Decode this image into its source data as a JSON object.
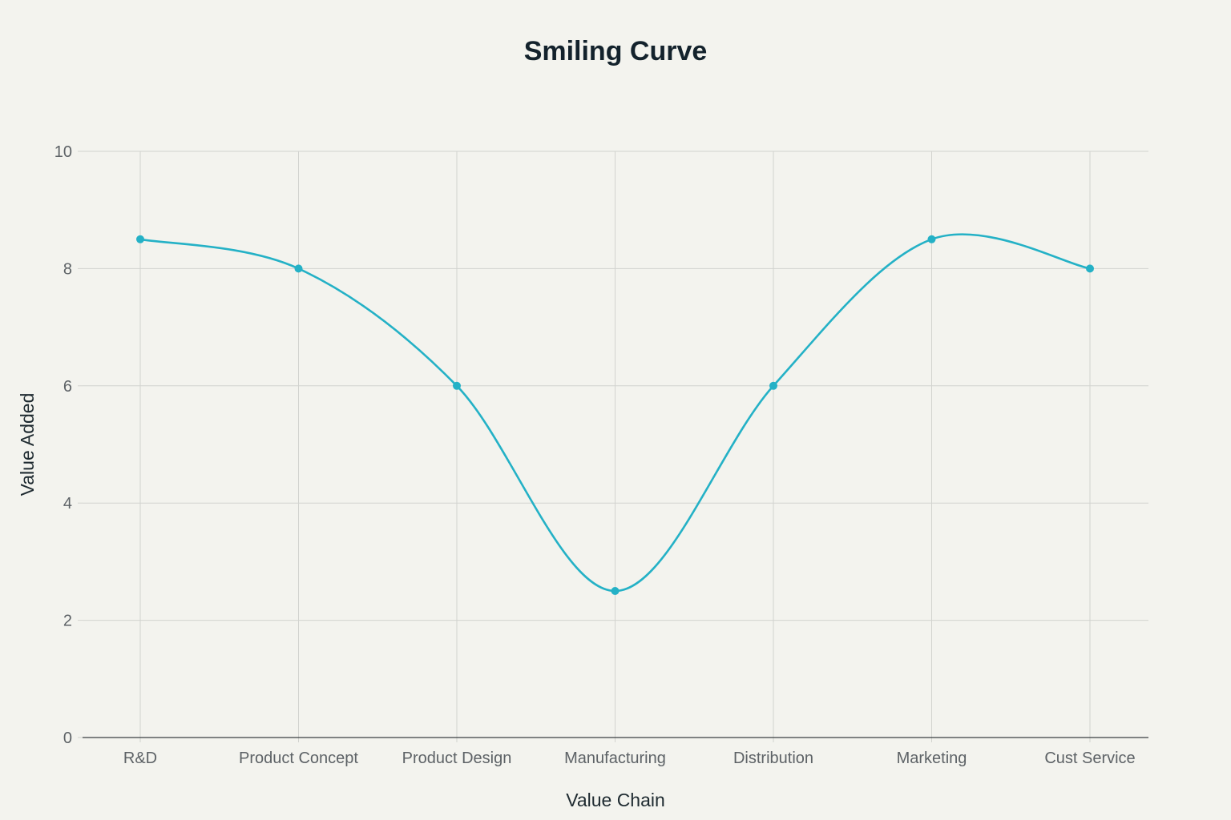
{
  "chart_data": {
    "type": "line",
    "title": "Smiling Curve",
    "xlabel": "Value Chain",
    "ylabel": "Value Added",
    "categories": [
      "R&D",
      "Product Concept",
      "Product Design",
      "Manufacturing",
      "Distribution",
      "Marketing",
      "Cust Service"
    ],
    "series": [
      {
        "values": [
          8.5,
          8,
          6,
          2.5,
          6,
          8.5,
          8
        ]
      }
    ],
    "ylim": [
      0,
      10
    ],
    "yticks": [
      0,
      2,
      4,
      6,
      8,
      10
    ],
    "grid": true,
    "line_shape": "spline",
    "colors": {
      "series": "#24b1c6",
      "grid": "#d2d3cf",
      "axis": "#3a3f42",
      "background": "#f3f3ee"
    }
  }
}
